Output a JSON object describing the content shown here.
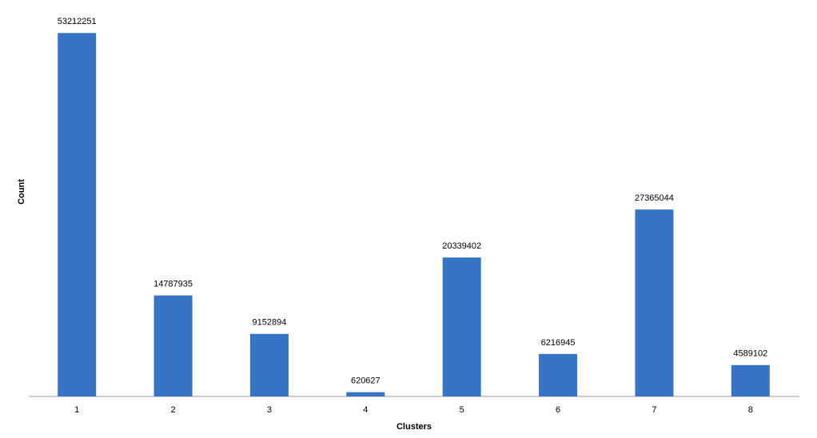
{
  "chart_data": {
    "type": "bar",
    "x_label": "Clusters",
    "y_label": "Count",
    "categories": [
      "1",
      "2",
      "3",
      "4",
      "5",
      "6",
      "7",
      "8"
    ],
    "values": [
      53212251,
      14787935,
      9152894,
      620627,
      20339402,
      6216945,
      27365044,
      4589102
    ],
    "color": "#3774c6",
    "ylim": [
      0,
      55000000
    ]
  }
}
